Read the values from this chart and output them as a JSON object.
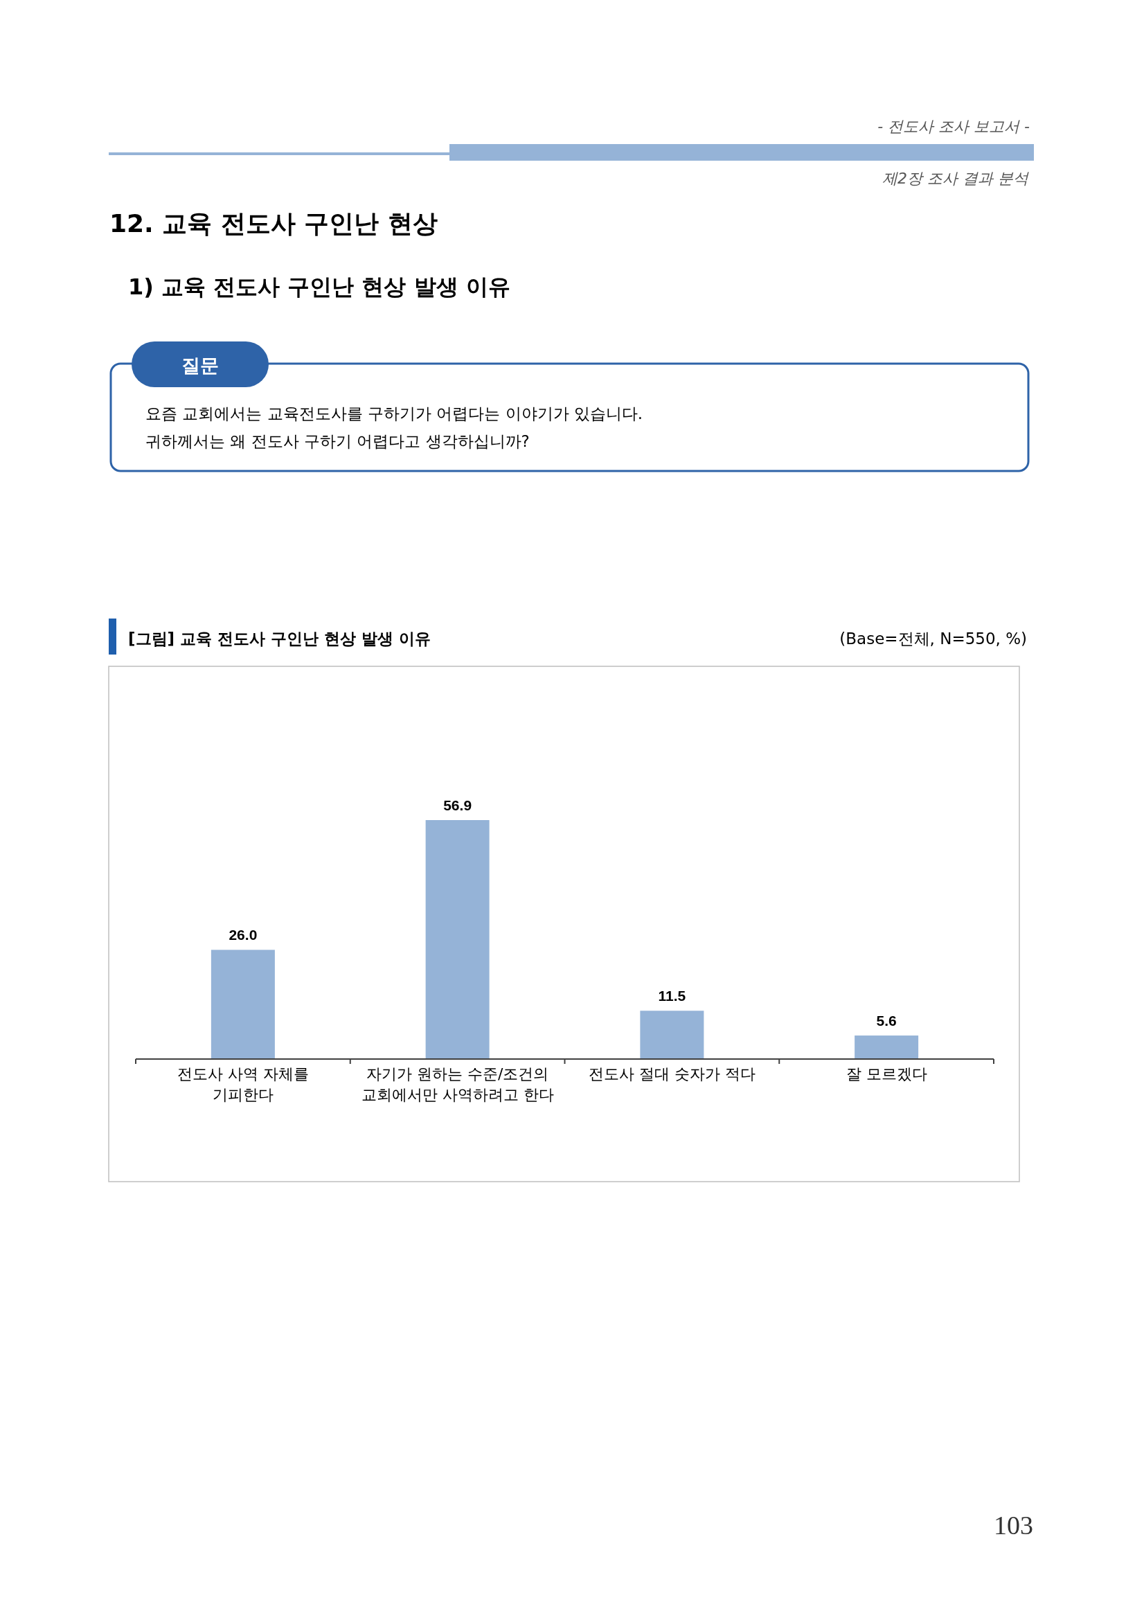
{
  "chart_data": {
    "type": "bar",
    "title": "[그림] 교육 전도사 구인난 현상 발생 이유",
    "subtitle": "(Base=전체, N=550, %)",
    "categories": [
      "전도사 사역 자체를\n기피한다",
      "자기가 원하는 수준/조건의\n교회에서만 사역하려고 한다",
      "전도사 절대 숫자가 적다",
      "잘 모르겠다"
    ],
    "values": [
      26.0,
      56.9,
      11.5,
      5.6
    ],
    "color": "#95b3d7",
    "value_labels": [
      "26.0",
      "56.9",
      "11.5",
      "5.6"
    ],
    "annotations": [
      "- 전도사 조사 보고서 -",
      "제2장 조사 결과 분석",
      "12. 교육 전도사 구인난 현상",
      "1) 교육 전도사 구인난 현상 발생 이유",
      "질문",
      "요즘 교회에서는 교육전도사를 구하기가 어렵다는 이야기가 있습니다.",
      "귀하께서는 왜 전도사 구하기 어렵다고 생각하십니까?",
      "103"
    ]
  }
}
